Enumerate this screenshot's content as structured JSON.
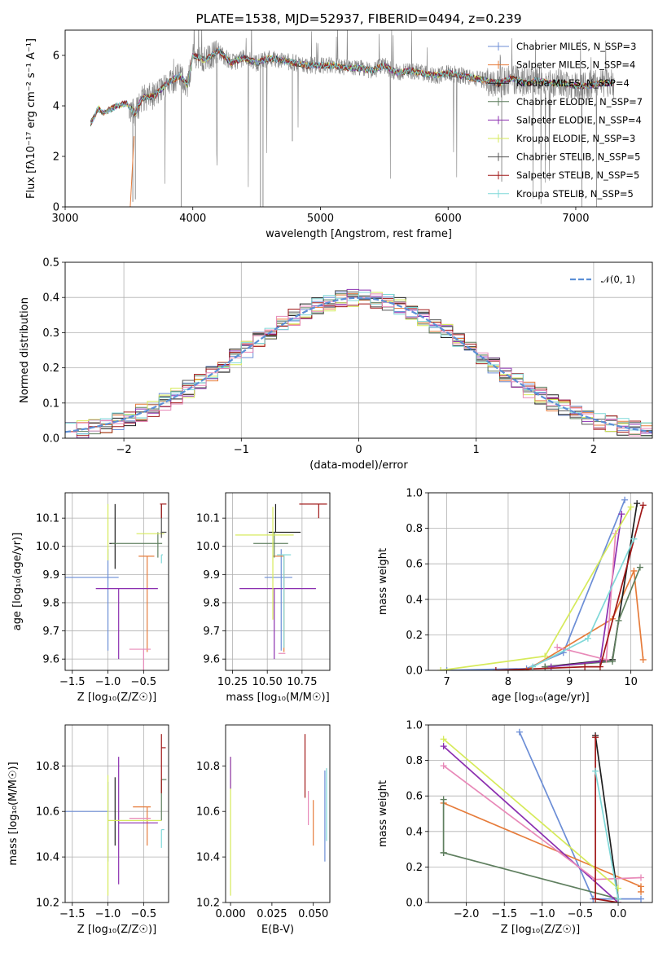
{
  "chart_data": [
    {
      "id": "spectrum",
      "type": "line",
      "title": "PLATE=1538, MJD=52937, FIBERID=0494, z=0.239",
      "xlabel": "wavelength [Angstrom, rest frame]",
      "ylabel": "Flux [fλ10⁻¹⁷ erg cm⁻² s⁻¹ A⁻¹]",
      "xlim": [
        3000,
        7600
      ],
      "ylim": [
        0,
        7
      ],
      "xticks": [
        "3000",
        "4000",
        "5000",
        "6000",
        "7000"
      ],
      "yticks": [
        "0",
        "2",
        "4",
        "6"
      ],
      "grid": false,
      "legend_position": "top-right",
      "series": [
        {
          "name": "Chabrier MILES, N_SSP=3",
          "color": "#6c8ed6"
        },
        {
          "name": "Salpeter MILES, N_SSP=4",
          "color": "#e67c3b"
        },
        {
          "name": "Kroupa MILES, N_SSP=4",
          "color": "#1f1f1f"
        },
        {
          "name": "Chabrier ELODIE, N_SSP=7",
          "color": "#5f7f5f"
        },
        {
          "name": "Salpeter ELODIE, N_SSP=4",
          "color": "#8b2fb0"
        },
        {
          "name": "Kroupa ELODIE, N_SSP=3",
          "color": "#d6ea5a"
        },
        {
          "name": "Chabrier STELIB, N_SSP=5",
          "color": "#555555"
        },
        {
          "name": "Salpeter STELIB, N_SSP=5",
          "color": "#a01818"
        },
        {
          "name": "Kroupa STELIB, N_SSP=5",
          "color": "#7fd8d8"
        }
      ],
      "data_color": "#808080",
      "continuum": {
        "x": [
          3200,
          3260,
          3300,
          3400,
          3480,
          3550,
          3600,
          3700,
          3800,
          3900,
          3960,
          4000,
          4100,
          4200,
          4300,
          4400,
          4500,
          4600,
          4700,
          4800,
          4900,
          5000,
          5100,
          5200,
          5300,
          5400,
          5500,
          5600,
          5700,
          5800,
          5900,
          6000,
          6100,
          6200,
          6300,
          6400,
          6500,
          6600,
          6700,
          6800,
          6900,
          7000,
          7100,
          7200,
          7300
        ],
        "y": [
          3.3,
          3.9,
          3.7,
          4.0,
          4.1,
          3.7,
          4.3,
          4.4,
          4.9,
          5.2,
          4.8,
          6.0,
          5.8,
          6.2,
          5.7,
          5.9,
          5.7,
          5.9,
          5.8,
          5.7,
          5.6,
          5.6,
          5.6,
          5.5,
          5.5,
          5.4,
          5.6,
          5.3,
          5.4,
          5.3,
          5.2,
          5.3,
          5.2,
          5.1,
          5.0,
          4.9,
          5.1,
          4.9,
          5.0,
          4.9,
          4.9,
          4.8,
          4.8,
          4.9,
          4.9
        ]
      }
    },
    {
      "id": "residuals",
      "type": "line",
      "xlabel": "(data-model)/error",
      "ylabel": "Normed distribution",
      "xlim": [
        -2.5,
        2.5
      ],
      "ylim": [
        0,
        0.5
      ],
      "xticks": [
        "−2",
        "−1",
        "0",
        "1",
        "2"
      ],
      "yticks": [
        "0.0",
        "0.1",
        "0.2",
        "0.3",
        "0.4",
        "0.5"
      ],
      "grid": true,
      "legend_position": "top-right",
      "reference_curve": {
        "name": "𝒩(0, 1)",
        "color": "#5b8fd6",
        "mean": 0,
        "sigma": 1
      },
      "bin_width": 0.1
    },
    {
      "id": "age-vs-Z",
      "type": "scatter",
      "xlabel": "Z [log₁₀(Z/Z☉)]",
      "ylabel": "age  [log₁₀(age/yr)]",
      "xlim": [
        -1.6,
        -0.15
      ],
      "ylim": [
        9.56,
        10.19
      ],
      "xticks": [
        "−1.5",
        "−1.0",
        "−0.5"
      ],
      "yticks": [
        "9.6",
        "9.7",
        "9.8",
        "9.9",
        "10.0",
        "10.1"
      ],
      "grid": true,
      "points": [
        {
          "x": -1.0,
          "xerr": [
            0.6,
            0.15
          ],
          "y": 9.89,
          "yerr": [
            0.26,
            0.1
          ],
          "color": "#6c8ed6"
        },
        {
          "x": -0.45,
          "xerr": [
            0.12,
            0.1
          ],
          "y": 9.965,
          "yerr": [
            0.34,
            0.0
          ],
          "color": "#e67c3b"
        },
        {
          "x": -0.9,
          "xerr": [
            0.08,
            0.0
          ],
          "y": 10.01,
          "yerr": [
            0.09,
            0.14
          ],
          "color": "#1f1f1f"
        },
        {
          "x": -0.3,
          "xerr": [
            0.65,
            0.06
          ],
          "y": 10.01,
          "yerr": [
            0.05,
            0.04
          ],
          "color": "#5f7f5f"
        },
        {
          "x": -0.85,
          "xerr": [
            0.32,
            0.55
          ],
          "y": 9.85,
          "yerr": [
            0.25,
            0.0
          ],
          "color": "#8b2fb0"
        },
        {
          "x": -0.5,
          "xerr": [
            0.2,
            0.1
          ],
          "y": 9.635,
          "yerr": [
            0.32,
            0.0
          ],
          "color": "#e889b8"
        },
        {
          "x": -1.0,
          "xerr": [
            0.0,
            0.0
          ],
          "y": 9.95,
          "yerr": [
            0.0,
            0.2
          ],
          "color": "#d6ea5a"
        },
        {
          "x": -0.25,
          "xerr": [
            0.35,
            0.04
          ],
          "y": 10.045,
          "yerr": [
            0.0,
            0.0
          ],
          "color": "#d6ea5a"
        },
        {
          "x": -0.25,
          "xerr": [
            0.01,
            0.07
          ],
          "y": 10.05,
          "yerr": [
            0.02,
            0.1
          ],
          "color": "#555555"
        },
        {
          "x": -0.25,
          "xerr": [
            0.02,
            0.07
          ],
          "y": 10.15,
          "yerr": [
            0.05,
            0.0
          ],
          "color": "#a01818"
        },
        {
          "x": -0.25,
          "xerr": [
            0.0,
            0.02
          ],
          "y": 9.97,
          "yerr": [
            0.03,
            0.0
          ],
          "color": "#7fd8d8"
        }
      ]
    },
    {
      "id": "age-vs-mass",
      "type": "scatter",
      "xlabel": "mass [log₁₀(M/M☉)]",
      "xlim": [
        10.2,
        10.95
      ],
      "ylim": [
        9.56,
        10.19
      ],
      "xticks": [
        "10.25",
        "10.50",
        "10.75"
      ],
      "yticks": [
        "9.6",
        "9.7",
        "9.8",
        "9.9",
        "10.0",
        "10.1"
      ],
      "grid": true,
      "points": [
        {
          "x": 10.6,
          "xerr": [
            0.12,
            0.08
          ],
          "y": 9.89,
          "yerr": [
            0.26,
            0.1
          ],
          "color": "#6c8ed6"
        },
        {
          "x": 10.62,
          "xerr": [
            0.08,
            0.0
          ],
          "y": 9.965,
          "yerr": [
            0.34,
            0.0
          ],
          "color": "#e67c3b"
        },
        {
          "x": 10.56,
          "xerr": [
            0.05,
            0.18
          ],
          "y": 10.05,
          "yerr": [
            0.0,
            0.1
          ],
          "color": "#1f1f1f"
        },
        {
          "x": 10.55,
          "xerr": [
            0.15,
            0.1
          ],
          "y": 10.01,
          "yerr": [
            0.05,
            0.04
          ],
          "color": "#5f7f5f"
        },
        {
          "x": 10.55,
          "xerr": [
            0.25,
            0.3
          ],
          "y": 9.85,
          "yerr": [
            0.25,
            0.0
          ],
          "color": "#8b2fb0"
        },
        {
          "x": 10.58,
          "xerr": [
            0.0,
            0.05
          ],
          "y": 9.62,
          "yerr": [
            0.0,
            0.0
          ],
          "color": "#e889b8"
        },
        {
          "x": 10.54,
          "xerr": [
            0.27,
            0.15
          ],
          "y": 10.04,
          "yerr": [
            0.3,
            0.1
          ],
          "color": "#d6ea5a"
        },
        {
          "x": 10.62,
          "xerr": [
            0.05,
            0.05
          ],
          "y": 9.97,
          "yerr": [
            0.33,
            0.0
          ],
          "color": "#7fd8d8"
        },
        {
          "x": 10.87,
          "xerr": [
            0.14,
            0.06
          ],
          "y": 10.15,
          "yerr": [
            0.05,
            0.0
          ],
          "color": "#a01818"
        }
      ]
    },
    {
      "id": "mass-weight-vs-age",
      "type": "line",
      "xlabel": "age  [log₁₀(age/yr)]",
      "ylabel": "mass weight",
      "xlim": [
        6.7,
        10.35
      ],
      "ylim": [
        0,
        1
      ],
      "xticks": [
        "7",
        "8",
        "9",
        "10"
      ],
      "yticks": [
        "0.0",
        "0.2",
        "0.4",
        "0.6",
        "0.8",
        "1.0"
      ],
      "grid": true,
      "series": [
        {
          "color": "#6c8ed6",
          "x": [
            7.0,
            8.3,
            8.9,
            9.9
          ],
          "y": [
            0.0,
            0.01,
            0.1,
            0.96
          ]
        },
        {
          "color": "#e67c3b",
          "x": [
            8.3,
            9.7,
            10.05,
            10.2
          ],
          "y": [
            0.0,
            0.29,
            0.56,
            0.06
          ]
        },
        {
          "color": "#1f1f1f",
          "x": [
            8.6,
            9.7,
            10.1
          ],
          "y": [
            0.02,
            0.06,
            0.94
          ]
        },
        {
          "color": "#5f7f5f",
          "x": [
            8.6,
            9.7,
            9.8,
            10.15
          ],
          "y": [
            0.02,
            0.05,
            0.28,
            0.58
          ]
        },
        {
          "color": "#8b2fb0",
          "x": [
            8.7,
            9.5,
            9.85
          ],
          "y": [
            0.02,
            0.05,
            0.88
          ]
        },
        {
          "color": "#e889b8",
          "x": [
            8.8,
            9.6,
            9.75
          ],
          "y": [
            0.13,
            0.06,
            0.77
          ]
        },
        {
          "color": "#d6ea5a",
          "x": [
            6.9,
            8.6,
            10.0
          ],
          "y": [
            0.0,
            0.08,
            0.92
          ]
        },
        {
          "color": "#a01818",
          "x": [
            7.8,
            9.25,
            9.5,
            10.2
          ],
          "y": [
            0.0,
            0.02,
            0.02,
            0.93
          ]
        },
        {
          "color": "#7fd8d8",
          "x": [
            8.4,
            9.3,
            10.05
          ],
          "y": [
            0.02,
            0.18,
            0.74
          ]
        }
      ]
    },
    {
      "id": "mass-vs-Z",
      "type": "scatter",
      "xlabel": "Z [log₁₀(Z/Z☉)]",
      "ylabel": "mass [log₁₀(M/M☉)]",
      "xlim": [
        -1.6,
        -0.15
      ],
      "ylim": [
        10.2,
        10.98
      ],
      "xticks": [
        "−1.5",
        "−1.0",
        "−0.5"
      ],
      "yticks": [
        "10.2",
        "10.4",
        "10.6",
        "10.8"
      ],
      "grid": true,
      "points": [
        {
          "x": -1.0,
          "xerr": [
            0.6,
            0.0
          ],
          "y": 10.6,
          "yerr": [
            0.22,
            0.13
          ],
          "color": "#6c8ed6"
        },
        {
          "x": -0.45,
          "xerr": [
            0.2,
            0.05
          ],
          "y": 10.62,
          "yerr": [
            0.17,
            0.0
          ],
          "color": "#e67c3b"
        },
        {
          "x": -0.9,
          "xerr": [
            0.0,
            0.0
          ],
          "y": 10.6,
          "yerr": [
            0.15,
            0.15
          ],
          "color": "#1f1f1f"
        },
        {
          "x": -0.25,
          "xerr": [
            0.0,
            0.07
          ],
          "y": 10.74,
          "yerr": [
            0.18,
            0.0
          ],
          "color": "#5f7f5f"
        },
        {
          "x": -0.85,
          "xerr": [
            0.0,
            0.55
          ],
          "y": 10.55,
          "yerr": [
            0.27,
            0.29
          ],
          "color": "#8b2fb0"
        },
        {
          "x": -0.5,
          "xerr": [
            0.2,
            0.1
          ],
          "y": 10.57,
          "yerr": [
            0.0,
            0.0
          ],
          "color": "#e889b8"
        },
        {
          "x": -1.0,
          "xerr": [
            0.0,
            0.75
          ],
          "y": 10.56,
          "yerr": [
            0.33,
            0.2
          ],
          "color": "#d6ea5a"
        },
        {
          "x": -0.25,
          "xerr": [
            0.0,
            0.06
          ],
          "y": 10.88,
          "yerr": [
            0.2,
            0.06
          ],
          "color": "#a01818"
        },
        {
          "x": -0.25,
          "xerr": [
            0.0,
            0.04
          ],
          "y": 10.52,
          "yerr": [
            0.08,
            0.0
          ],
          "color": "#7fd8d8"
        }
      ]
    },
    {
      "id": "mass-vs-EBV",
      "type": "scatter",
      "xlabel": "E(B-V)",
      "xlim": [
        -0.003,
        0.06
      ],
      "ylim": [
        10.2,
        10.98
      ],
      "xticks": [
        "0.000",
        "0.025",
        "0.050"
      ],
      "yticks": [
        "10.2",
        "10.4",
        "10.6",
        "10.8"
      ],
      "grid": false,
      "points": [
        {
          "x": 0.0,
          "y": 10.6,
          "yerr": [
            0.37,
            0.24
          ],
          "color": "#d6ea5a"
        },
        {
          "x": 0.0,
          "y": 10.8,
          "yerr": [
            0.1,
            0.04
          ],
          "color": "#8b2fb0"
        },
        {
          "x": 0.045,
          "y": 10.78,
          "yerr": [
            0.12,
            0.16
          ],
          "color": "#a01818"
        },
        {
          "x": 0.047,
          "y": 10.6,
          "yerr": [
            0.06,
            0.09
          ],
          "color": "#e889b8"
        },
        {
          "x": 0.05,
          "y": 10.55,
          "yerr": [
            0.1,
            0.1
          ],
          "color": "#e67c3b"
        },
        {
          "x": 0.057,
          "y": 10.58,
          "yerr": [
            0.2,
            0.2
          ],
          "color": "#6c8ed6"
        },
        {
          "x": 0.058,
          "y": 10.65,
          "yerr": [
            0.18,
            0.14
          ],
          "color": "#7fd8d8"
        }
      ]
    },
    {
      "id": "mass-weight-vs-Z",
      "type": "line",
      "xlabel": "Z [log₁₀(Z/Z☉)]",
      "ylabel": "mass weight",
      "xlim": [
        -2.5,
        0.45
      ],
      "ylim": [
        0,
        1
      ],
      "xticks": [
        "−2.0",
        "−1.5",
        "−1.0",
        "−0.5",
        "0.0"
      ],
      "yticks": [
        "0.0",
        "0.2",
        "0.4",
        "0.6",
        "0.8",
        "1.0"
      ],
      "grid": true,
      "series": [
        {
          "color": "#6c8ed6",
          "x": [
            -1.3,
            -0.33,
            0.3
          ],
          "y": [
            0.96,
            0.02,
            0.02
          ]
        },
        {
          "color": "#e67c3b",
          "x": [
            -2.3,
            0.3,
            0.3
          ],
          "y": [
            0.56,
            0.09,
            0.06
          ]
        },
        {
          "color": "#1f1f1f",
          "x": [
            -0.3,
            0.0
          ],
          "y": [
            0.94,
            0.02
          ]
        },
        {
          "color": "#5f7f5f",
          "x": [
            -2.3,
            -2.3,
            -2.3,
            0.0
          ],
          "y": [
            0.58,
            0.28,
            0.28,
            0.02
          ]
        },
        {
          "color": "#8b2fb0",
          "x": [
            -2.3,
            0.0
          ],
          "y": [
            0.88,
            0.0
          ]
        },
        {
          "color": "#e889b8",
          "x": [
            -2.3,
            -0.3,
            0.3
          ],
          "y": [
            0.77,
            0.13,
            0.14
          ]
        },
        {
          "color": "#d6ea5a",
          "x": [
            -2.3,
            0.0
          ],
          "y": [
            0.92,
            0.08
          ]
        },
        {
          "color": "#a01818",
          "x": [
            -0.3,
            -0.3,
            0.0
          ],
          "y": [
            0.93,
            0.02,
            0.0
          ]
        },
        {
          "color": "#7fd8d8",
          "x": [
            -0.3,
            0.0
          ],
          "y": [
            0.74,
            0.02
          ]
        }
      ]
    }
  ]
}
